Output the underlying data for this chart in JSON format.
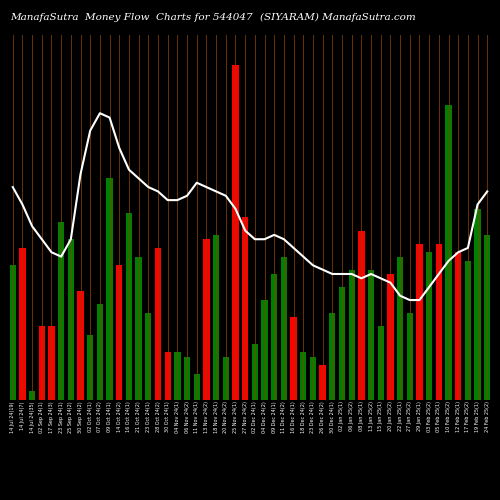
{
  "title_left": "ManafaSutra  Money Flow  Charts for 544047",
  "title_right": "(SIYARAM) ManafaSutra.com",
  "background_color": "#000000",
  "bar_colors": [
    "green",
    "red",
    "green",
    "red",
    "red",
    "green",
    "green",
    "red",
    "green",
    "green",
    "green",
    "red",
    "green",
    "green",
    "green",
    "red",
    "red",
    "green",
    "green",
    "green",
    "red",
    "green",
    "green",
    "red",
    "red",
    "green",
    "green",
    "green",
    "green",
    "red",
    "green",
    "green",
    "red",
    "green",
    "green",
    "green",
    "red",
    "green",
    "green",
    "red",
    "green",
    "green",
    "red",
    "green",
    "red",
    "green",
    "red",
    "green",
    "green",
    "green"
  ],
  "bar_heights": [
    155,
    175,
    10,
    85,
    85,
    205,
    185,
    125,
    75,
    110,
    255,
    155,
    215,
    165,
    100,
    175,
    55,
    55,
    50,
    30,
    185,
    190,
    50,
    385,
    210,
    65,
    115,
    145,
    165,
    95,
    55,
    50,
    40,
    100,
    130,
    150,
    195,
    150,
    85,
    145,
    165,
    100,
    180,
    170,
    180,
    340,
    170,
    160,
    220,
    190
  ],
  "line_values": [
    245,
    225,
    200,
    185,
    170,
    165,
    185,
    260,
    310,
    330,
    325,
    290,
    265,
    255,
    245,
    240,
    230,
    230,
    235,
    250,
    245,
    240,
    235,
    220,
    195,
    185,
    185,
    190,
    185,
    175,
    165,
    155,
    150,
    145,
    145,
    145,
    140,
    145,
    140,
    135,
    120,
    115,
    115,
    130,
    145,
    160,
    170,
    175,
    225,
    240
  ],
  "x_labels": [
    "14 Jul 24(19)",
    "14 Jul 24(7)",
    "14 Jul 24(35)",
    "02 Sep 24(1)",
    "17 Sep 24(3)",
    "23 Sep 24(1)",
    "25 Sep 24(2)",
    "30 Sep 24(2)",
    "02 Oct 24(1)",
    "07 Oct 24(2)",
    "09 Oct 24(1)",
    "14 Oct 24(2)",
    "16 Oct 24(1)",
    "21 Oct 24(2)",
    "23 Oct 24(1)",
    "28 Oct 24(2)",
    "30 Oct 24(1)",
    "04 Nov 24(1)",
    "06 Nov 24(2)",
    "11 Nov 24(1)",
    "13 Nov 24(2)",
    "18 Nov 24(1)",
    "20 Nov 24(2)",
    "25 Nov 24(1)",
    "27 Nov 24(2)",
    "02 Dec 24(1)",
    "04 Dec 24(2)",
    "09 Dec 24(1)",
    "11 Dec 24(2)",
    "16 Dec 24(1)",
    "18 Dec 24(2)",
    "23 Dec 24(1)",
    "26 Dec 24(2)",
    "30 Dec 24(1)",
    "02 Jan 25(1)",
    "06 Jan 25(2)",
    "08 Jan 25(1)",
    "13 Jan 25(2)",
    "15 Jan 25(1)",
    "20 Jan 25(2)",
    "22 Jan 25(1)",
    "27 Jan 25(2)",
    "29 Jan 25(1)",
    "03 Feb 25(2)",
    "05 Feb 25(1)",
    "10 Feb 25(2)",
    "12 Feb 25(1)",
    "17 Feb 25(2)",
    "19 Feb 25(1)",
    "24 Feb 25(2)"
  ],
  "line_color": "#ffffff",
  "grid_line_color": "#8B4000",
  "title_color": "#ffffff",
  "title_fontsize": 7.5,
  "tick_fontsize": 3.5
}
